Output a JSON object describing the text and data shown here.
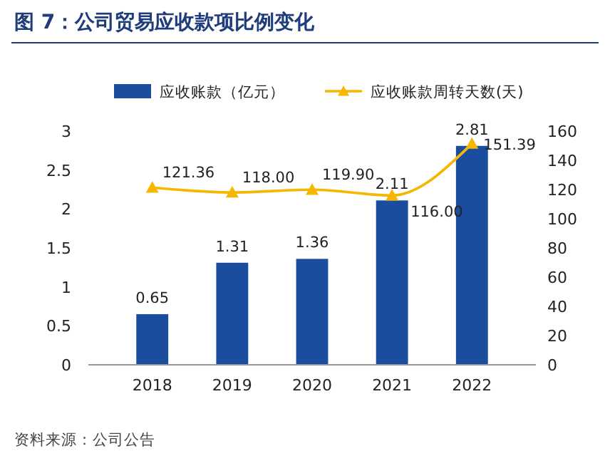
{
  "chart_data": {
    "type": "bar",
    "title": "图 7：公司贸易应收款项比例变化",
    "categories": [
      "2018",
      "2019",
      "2020",
      "2021",
      "2022"
    ],
    "series": [
      {
        "name": "应收账款（亿元）",
        "color": "#1a4d9e",
        "values": [
          0.65,
          1.31,
          1.36,
          2.11,
          2.81
        ]
      },
      {
        "name": "应收账款周转天数(天)",
        "type": "line",
        "axis": "y2",
        "color": "#f5b700",
        "values": [
          121.36,
          118.0,
          119.9,
          116.0,
          151.39
        ],
        "value_labels": [
          "121.36",
          "118.00",
          "119.90",
          "116.00",
          "151.39"
        ]
      }
    ],
    "ylim": [
      0,
      3
    ],
    "yticks": [
      0,
      0.5,
      1,
      1.5,
      2,
      2.5,
      3
    ],
    "y2lim": [
      0,
      160
    ],
    "y2ticks": [
      0,
      20,
      40,
      60,
      80,
      100,
      120,
      140,
      160
    ],
    "data_labels": true,
    "legend": "top",
    "marker": "triangle",
    "grid": false,
    "annotations": [
      "资料来源：公司公告"
    ]
  }
}
